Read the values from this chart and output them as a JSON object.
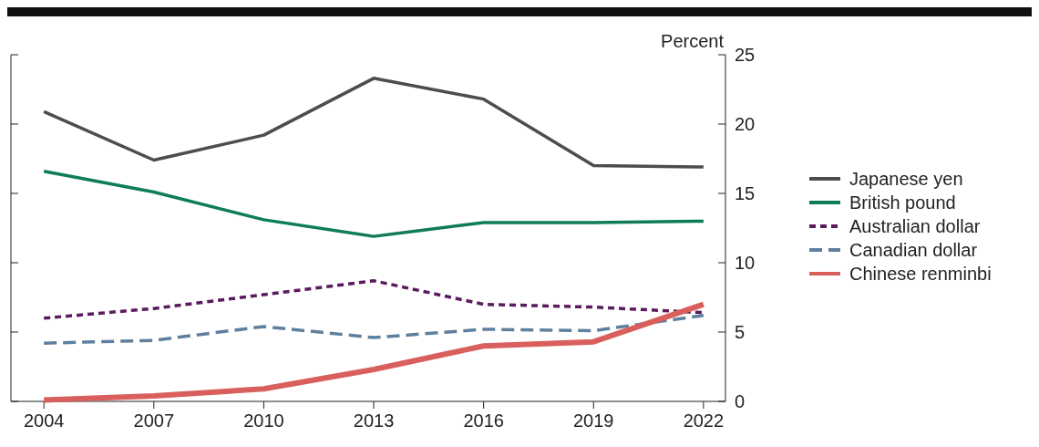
{
  "chart_data": {
    "type": "line",
    "ylabel": "Percent",
    "x": [
      2004,
      2007,
      2010,
      2013,
      2016,
      2019,
      2022
    ],
    "xlim": [
      2003.1,
      2022.6
    ],
    "xticks": [
      2004,
      2007,
      2010,
      2013,
      2016,
      2019,
      2022
    ],
    "ylim": [
      0,
      25
    ],
    "yticks": [
      0,
      5,
      10,
      15,
      20,
      25
    ],
    "legend": "right",
    "grid": false,
    "series": [
      {
        "name": "Japanese yen",
        "color": "#4d4d4d",
        "line_style": "solid",
        "values": [
          20.9,
          17.4,
          19.2,
          23.3,
          21.8,
          17.0,
          16.9
        ]
      },
      {
        "name": "British pound",
        "color": "#0e7c5b",
        "line_style": "solid",
        "values": [
          16.6,
          15.1,
          13.1,
          11.9,
          12.9,
          12.9,
          13.0
        ]
      },
      {
        "name": "Australian dollar",
        "color": "#5b1a5e",
        "line_style": "dotted",
        "values": [
          6.0,
          6.7,
          7.7,
          8.7,
          7.0,
          6.8,
          6.4
        ]
      },
      {
        "name": "Canadian dollar",
        "color": "#5f7f9e",
        "line_style": "dashed",
        "values": [
          4.2,
          4.4,
          5.4,
          4.6,
          5.2,
          5.1,
          6.2
        ]
      },
      {
        "name": "Chinese renminbi",
        "color": "#d95f5c",
        "line_style": "solid",
        "values": [
          0.1,
          0.4,
          0.9,
          2.3,
          4.0,
          4.3,
          7.0
        ]
      }
    ]
  }
}
